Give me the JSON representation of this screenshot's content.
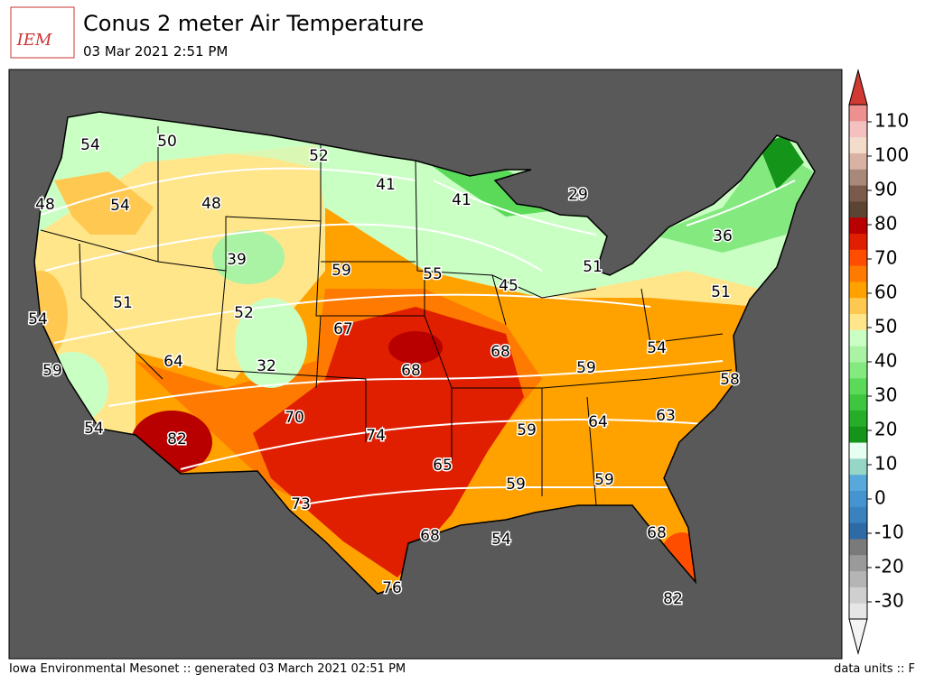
{
  "header": {
    "logo": "IEM",
    "title": "Conus 2 meter Air Temperature",
    "subtitle": "03 Mar 2021 2:51 PM"
  },
  "map": {
    "labels": [
      54,
      50,
      52,
      41,
      41,
      29,
      48,
      54,
      48,
      36,
      39,
      59,
      55,
      51,
      45,
      51,
      51,
      52,
      54,
      67,
      68,
      54,
      64,
      32,
      68,
      59,
      59,
      58,
      70,
      63,
      64,
      59,
      74,
      54,
      82,
      65,
      59,
      59,
      73,
      68,
      54,
      68,
      76,
      82
    ]
  },
  "colorbar": {
    "lim": [
      -35,
      115
    ],
    "ticks": [
      -30,
      -20,
      -10,
      0,
      10,
      20,
      30,
      40,
      50,
      60,
      70,
      80,
      90,
      100,
      110
    ],
    "colors": [
      "#e6e6e6",
      "#cfcfcf",
      "#b5b5b5",
      "#9a9a9a",
      "#7a7a7a",
      "#2e6aa6",
      "#3a82bd",
      "#4494cf",
      "#56a9da",
      "#96d6c6",
      "#e6fff0",
      "#15941a",
      "#26ad29",
      "#3ec63f",
      "#5bda5a",
      "#84ea80",
      "#aaf2a4",
      "#caffc4",
      "#ffe68a",
      "#ffc850",
      "#ffa200",
      "#ff7a00",
      "#ff4d00",
      "#e01e00",
      "#b80000",
      "#5c4433",
      "#7a5a4a",
      "#a88878",
      "#d9b2a4",
      "#f4dccc",
      "#f5c0c0",
      "#ee9090"
    ],
    "under": "#f4f4f4",
    "over": "#d13a32"
  },
  "footer": {
    "left": "Iowa Environmental Mesonet :: generated 03 March 2021 02:51 PM",
    "right": "data units :: F"
  }
}
